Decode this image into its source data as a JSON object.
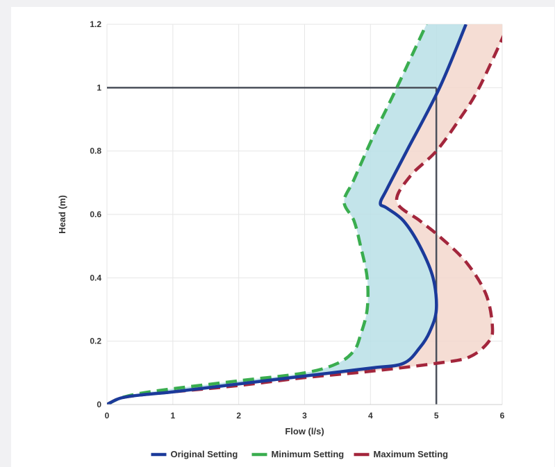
{
  "chart_data": {
    "type": "line",
    "title": "",
    "xlabel": "Flow (l/s)",
    "ylabel": "Head (m)",
    "xlim": [
      0,
      6
    ],
    "ylim": [
      0,
      1.2
    ],
    "xticks": [
      "0",
      "1",
      "2",
      "3",
      "4",
      "5",
      "6"
    ],
    "yticks": [
      "0",
      "0.2",
      "0.4",
      "0.6",
      "0.8",
      "1",
      "1.2"
    ],
    "grid": true,
    "legend_position": "bottom",
    "reference_point": {
      "x": 5,
      "y": 1
    },
    "series": [
      {
        "name": "Original Setting",
        "style": "solid",
        "color": "#1b3a9a",
        "points": [
          [
            0,
            0
          ],
          [
            0.2,
            0.02
          ],
          [
            0.5,
            0.03
          ],
          [
            1,
            0.04
          ],
          [
            2,
            0.065
          ],
          [
            3,
            0.09
          ],
          [
            4,
            0.115
          ],
          [
            4.5,
            0.13
          ],
          [
            4.75,
            0.18
          ],
          [
            4.9,
            0.23
          ],
          [
            5,
            0.3
          ],
          [
            4.95,
            0.4
          ],
          [
            4.75,
            0.5
          ],
          [
            4.5,
            0.58
          ],
          [
            4.25,
            0.62
          ],
          [
            4.15,
            0.635
          ],
          [
            4.25,
            0.68
          ],
          [
            4.55,
            0.8
          ],
          [
            5.05,
            1.0
          ],
          [
            5.45,
            1.2
          ]
        ]
      },
      {
        "name": "Minimum Setting",
        "style": "dashed",
        "color": "#3aad4f",
        "points": [
          [
            0,
            0
          ],
          [
            0.2,
            0.02
          ],
          [
            0.5,
            0.035
          ],
          [
            1,
            0.05
          ],
          [
            2,
            0.075
          ],
          [
            3,
            0.1
          ],
          [
            3.5,
            0.13
          ],
          [
            3.75,
            0.17
          ],
          [
            3.85,
            0.22
          ],
          [
            3.95,
            0.3
          ],
          [
            3.95,
            0.4
          ],
          [
            3.85,
            0.5
          ],
          [
            3.75,
            0.58
          ],
          [
            3.6,
            0.64
          ],
          [
            3.75,
            0.71
          ],
          [
            4.05,
            0.85
          ],
          [
            4.4,
            1.0
          ],
          [
            4.85,
            1.2
          ]
        ]
      },
      {
        "name": "Maximum Setting",
        "style": "dashed",
        "color": "#a3263c",
        "points": [
          [
            0,
            0
          ],
          [
            0.2,
            0.02
          ],
          [
            0.5,
            0.03
          ],
          [
            1,
            0.04
          ],
          [
            2,
            0.06
          ],
          [
            3,
            0.085
          ],
          [
            4,
            0.105
          ],
          [
            5,
            0.13
          ],
          [
            5.5,
            0.15
          ],
          [
            5.8,
            0.2
          ],
          [
            5.85,
            0.25
          ],
          [
            5.75,
            0.35
          ],
          [
            5.45,
            0.45
          ],
          [
            5.05,
            0.53
          ],
          [
            4.75,
            0.58
          ],
          [
            4.4,
            0.64
          ],
          [
            4.6,
            0.72
          ],
          [
            5,
            0.8
          ],
          [
            5.35,
            0.9
          ],
          [
            5.65,
            1.0
          ],
          [
            6.1,
            1.2
          ]
        ]
      }
    ],
    "fills": [
      {
        "between": [
          "Minimum Setting",
          "Original Setting"
        ],
        "color": "#b8dfe6"
      },
      {
        "between": [
          "Original Setting",
          "Maximum Setting"
        ],
        "color": "#f3d7cd"
      }
    ]
  }
}
